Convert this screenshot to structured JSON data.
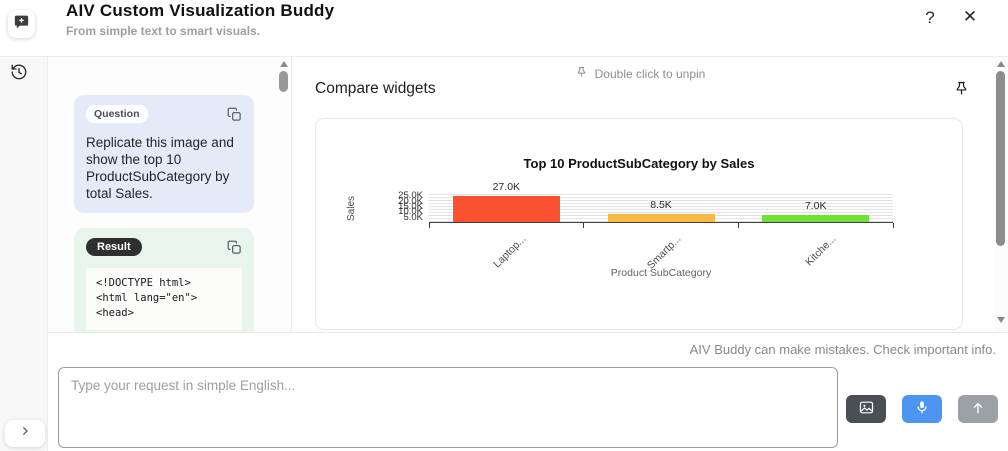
{
  "header": {
    "title": "AIV Custom Visualization Buddy",
    "subtitle": "From simple text to smart visuals."
  },
  "icons": {
    "help": "?",
    "close": "✕"
  },
  "chat": {
    "question": {
      "badge": "Question",
      "text": "Replicate this image and show the top 10 ProductSubCategory by total Sales."
    },
    "result": {
      "badge": "Result",
      "code_lines": [
        "<!DOCTYPE html>",
        "<html lang=\"en\">",
        "<head>"
      ]
    }
  },
  "main": {
    "unpin_hint": "Double click to unpin",
    "section_title": "Compare widgets"
  },
  "chart_data": {
    "type": "bar",
    "title": "Top 10 ProductSubCategory by Sales",
    "xlabel": "Product SubCategory",
    "ylabel": "Sales",
    "categories": [
      "Laptop...",
      "Smartp...",
      "Kitche..."
    ],
    "values": [
      27000,
      8500,
      7000
    ],
    "value_labels": [
      "27.0K",
      "8.5K",
      "7.0K"
    ],
    "bar_colors": [
      "#fa5231",
      "#f9b942",
      "#6ee335"
    ],
    "yticks": [
      {
        "v": 25000,
        "label": "25.0K"
      },
      {
        "v": 20000,
        "label": "20.0K"
      },
      {
        "v": 15000,
        "label": "15.0K"
      },
      {
        "v": 10000,
        "label": "10.0K"
      },
      {
        "v": 5000,
        "label": "5.0K"
      }
    ],
    "ylim": [
      0,
      27000
    ],
    "grid": true,
    "legend": "none"
  },
  "footer": {
    "disclaimer": "AIV Buddy can make mistakes. Check important info.",
    "input_placeholder": "Type your request in simple English..."
  }
}
